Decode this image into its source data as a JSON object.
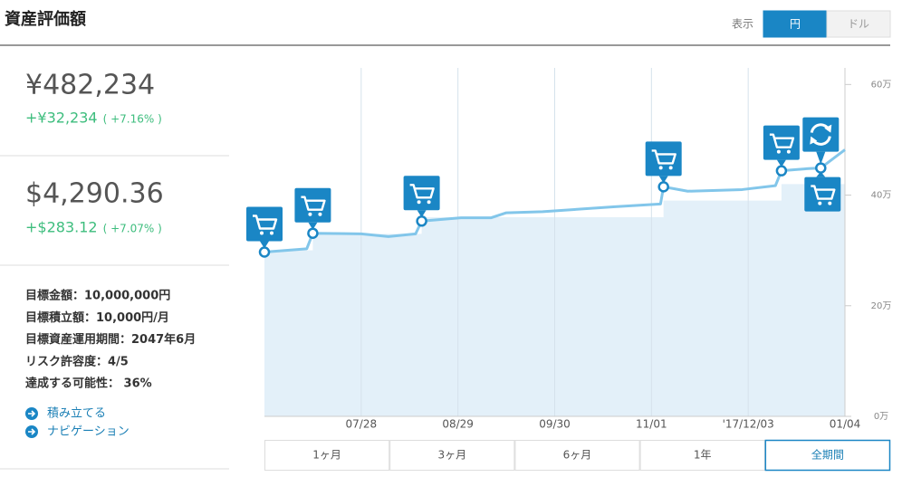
{
  "header": {
    "title": "資産評価額",
    "display_label": "表示",
    "currency_options": [
      "円",
      "ドル"
    ],
    "active_currency": 0
  },
  "summary": {
    "yen": {
      "value": "¥482,234",
      "change": "+¥32,234",
      "percent": "( +7.16% )"
    },
    "usd": {
      "value": "$4,290.36",
      "change": "+$283.12",
      "percent": "( +7.07% )"
    }
  },
  "goals": [
    "目標金額：10,000,000円",
    "目標積立額：10,000円/月",
    "目標資産運用期間：2047年6月",
    "リスク許容度：4/5",
    "達成する可能性： 36%"
  ],
  "links": [
    "積み立てる",
    "ナビゲーション"
  ],
  "range_buttons": [
    "1ヶ月",
    "3ヶ月",
    "6ヶ月",
    "1年",
    "全期間"
  ],
  "active_range": 4,
  "chart_data": {
    "type": "line",
    "xlim": [
      0,
      192
    ],
    "xticks": [
      {
        "value": 32,
        "label": "07/28"
      },
      {
        "value": 64,
        "label": "08/29"
      },
      {
        "value": 96,
        "label": "09/30"
      },
      {
        "value": 128,
        "label": "11/01"
      },
      {
        "value": 160,
        "label": "'17/12/03"
      },
      {
        "value": 192,
        "label": "01/04"
      }
    ],
    "ylim": [
      0,
      630000
    ],
    "yticks": [
      {
        "value": 0,
        "label": "0万"
      },
      {
        "value": 200000,
        "label": "20万"
      },
      {
        "value": 400000,
        "label": "40万"
      },
      {
        "value": 600000,
        "label": "60万"
      }
    ],
    "grid": true,
    "series": [
      {
        "type": "line",
        "color": "#82c6ea",
        "x": [
          0,
          14,
          16,
          32,
          41,
          50,
          52,
          65,
          75,
          80,
          92,
          116,
          131,
          132,
          140,
          158,
          169,
          171,
          180,
          184,
          192
        ],
        "values": [
          297000,
          303000,
          331000,
          330000,
          325000,
          330000,
          353000,
          359000,
          359000,
          368000,
          370000,
          379000,
          384000,
          415000,
          407000,
          410000,
          417000,
          444000,
          448000,
          449000,
          482000
        ]
      },
      {
        "type": "area",
        "color": "#e3f0f9",
        "x": [
          0,
          16,
          16,
          52,
          52,
          132,
          132,
          171,
          171,
          192
        ],
        "values": [
          300000,
          300000,
          330000,
          330000,
          360000,
          360000,
          390000,
          390000,
          420000,
          420000
        ]
      }
    ],
    "markers": {
      "color": "#1a86c5",
      "x": [
        0,
        16,
        52,
        132,
        171,
        184
      ],
      "values": [
        297000,
        331000,
        353000,
        415000,
        444000,
        449000
      ]
    }
  }
}
